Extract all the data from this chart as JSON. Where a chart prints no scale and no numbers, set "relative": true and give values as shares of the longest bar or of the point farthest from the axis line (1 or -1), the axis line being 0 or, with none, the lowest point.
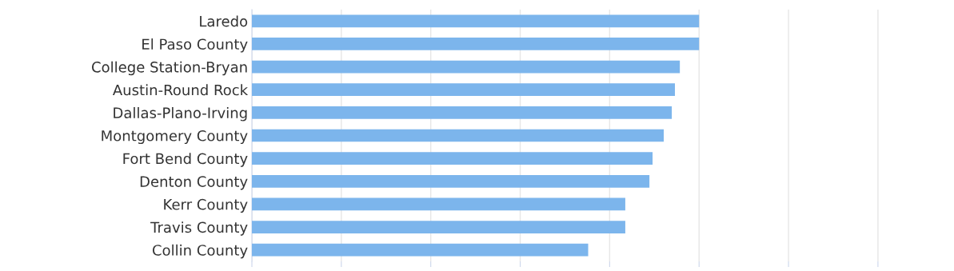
{
  "chart_data": {
    "type": "bar",
    "orientation": "horizontal",
    "relative": true,
    "categories": [
      "Laredo",
      "El Paso County",
      "College Station-Bryan",
      "Austin-Round Rock",
      "Dallas-Plano-Irving",
      "Montgomery County",
      "Fort Bend County",
      "Denton County",
      "Kerr County",
      "Travis County",
      "Collin County"
    ],
    "values": [
      1,
      1,
      0.957,
      0.946,
      0.939,
      0.921,
      0.896,
      0.889,
      0.835,
      0.835,
      0.752
    ],
    "color": "#7cb5ec",
    "grid": "x"
  }
}
